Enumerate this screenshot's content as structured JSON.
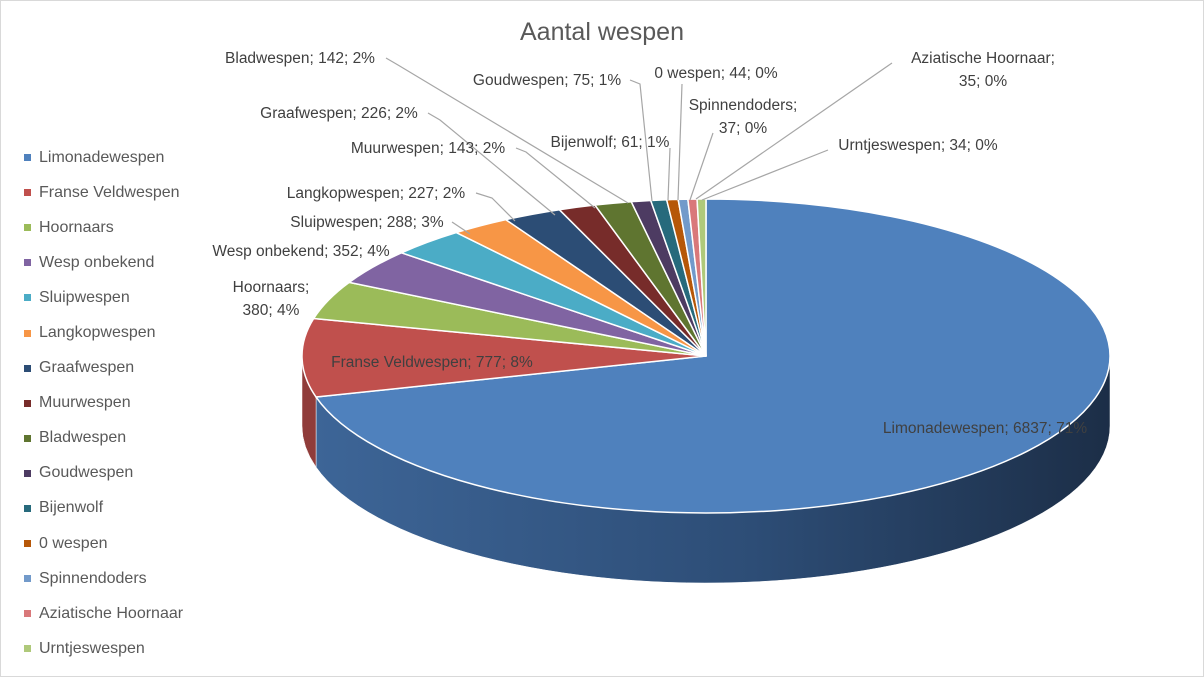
{
  "chart_data": {
    "type": "pie",
    "title": "Aantal wespen",
    "three_d": true,
    "legend_position": "left",
    "series": [
      {
        "name": "Limonadewespen",
        "value": 6837,
        "percent": "71%",
        "color": "#4f81bd",
        "label": "Limonadewespen; 6837; 71%"
      },
      {
        "name": "Franse Veldwespen",
        "value": 777,
        "percent": "8%",
        "color": "#c0504d",
        "label": "Franse Veldwespen; 777; 8%"
      },
      {
        "name": "Hoornaars",
        "value": 380,
        "percent": "4%",
        "color": "#9bbb59",
        "label": "Hoornaars;",
        "label2": "380; 4%"
      },
      {
        "name": "Wesp onbekend",
        "value": 352,
        "percent": "4%",
        "color": "#8064a2",
        "label": "Wesp onbekend; 352; 4%"
      },
      {
        "name": "Sluipwespen",
        "value": 288,
        "percent": "3%",
        "color": "#4bacc6",
        "label": "Sluipwespen; 288; 3%"
      },
      {
        "name": "Langkopwespen",
        "value": 227,
        "percent": "2%",
        "color": "#f79646",
        "label": "Langkopwespen; 227; 2%"
      },
      {
        "name": "Graafwespen",
        "value": 226,
        "percent": "2%",
        "color": "#2c4d75",
        "label": "Graafwespen; 226; 2%"
      },
      {
        "name": "Muurwespen",
        "value": 143,
        "percent": "2%",
        "color": "#772c2a",
        "label": "Muurwespen; 143; 2%"
      },
      {
        "name": "Bladwespen",
        "value": 142,
        "percent": "2%",
        "color": "#5f7530",
        "label": "Bladwespen; 142; 2%"
      },
      {
        "name": "Goudwespen",
        "value": 75,
        "percent": "1%",
        "color": "#4d3b62",
        "label": "Goudwespen; 75; 1%"
      },
      {
        "name": "Bijenwolf",
        "value": 61,
        "percent": "1%",
        "color": "#276a7c",
        "label": "Bijenwolf; 61; 1%"
      },
      {
        "name": "0 wespen",
        "value": 44,
        "percent": "0%",
        "color": "#b65708",
        "label": "0 wespen; 44; 0%"
      },
      {
        "name": "Spinnendoders",
        "value": 37,
        "percent": "0%",
        "color": "#729aca",
        "label": "Spinnendoders;",
        "label2": "37; 0%"
      },
      {
        "name": "Aziatische Hoornaar",
        "value": 35,
        "percent": "0%",
        "color": "#d9787a",
        "label": "Aziatische Hoornaar;",
        "label2": "35; 0%"
      },
      {
        "name": "Urntjeswespen",
        "value": 34,
        "percent": "0%",
        "color": "#afc97a",
        "label": "Urntjeswespen; 34; 0%"
      }
    ]
  }
}
